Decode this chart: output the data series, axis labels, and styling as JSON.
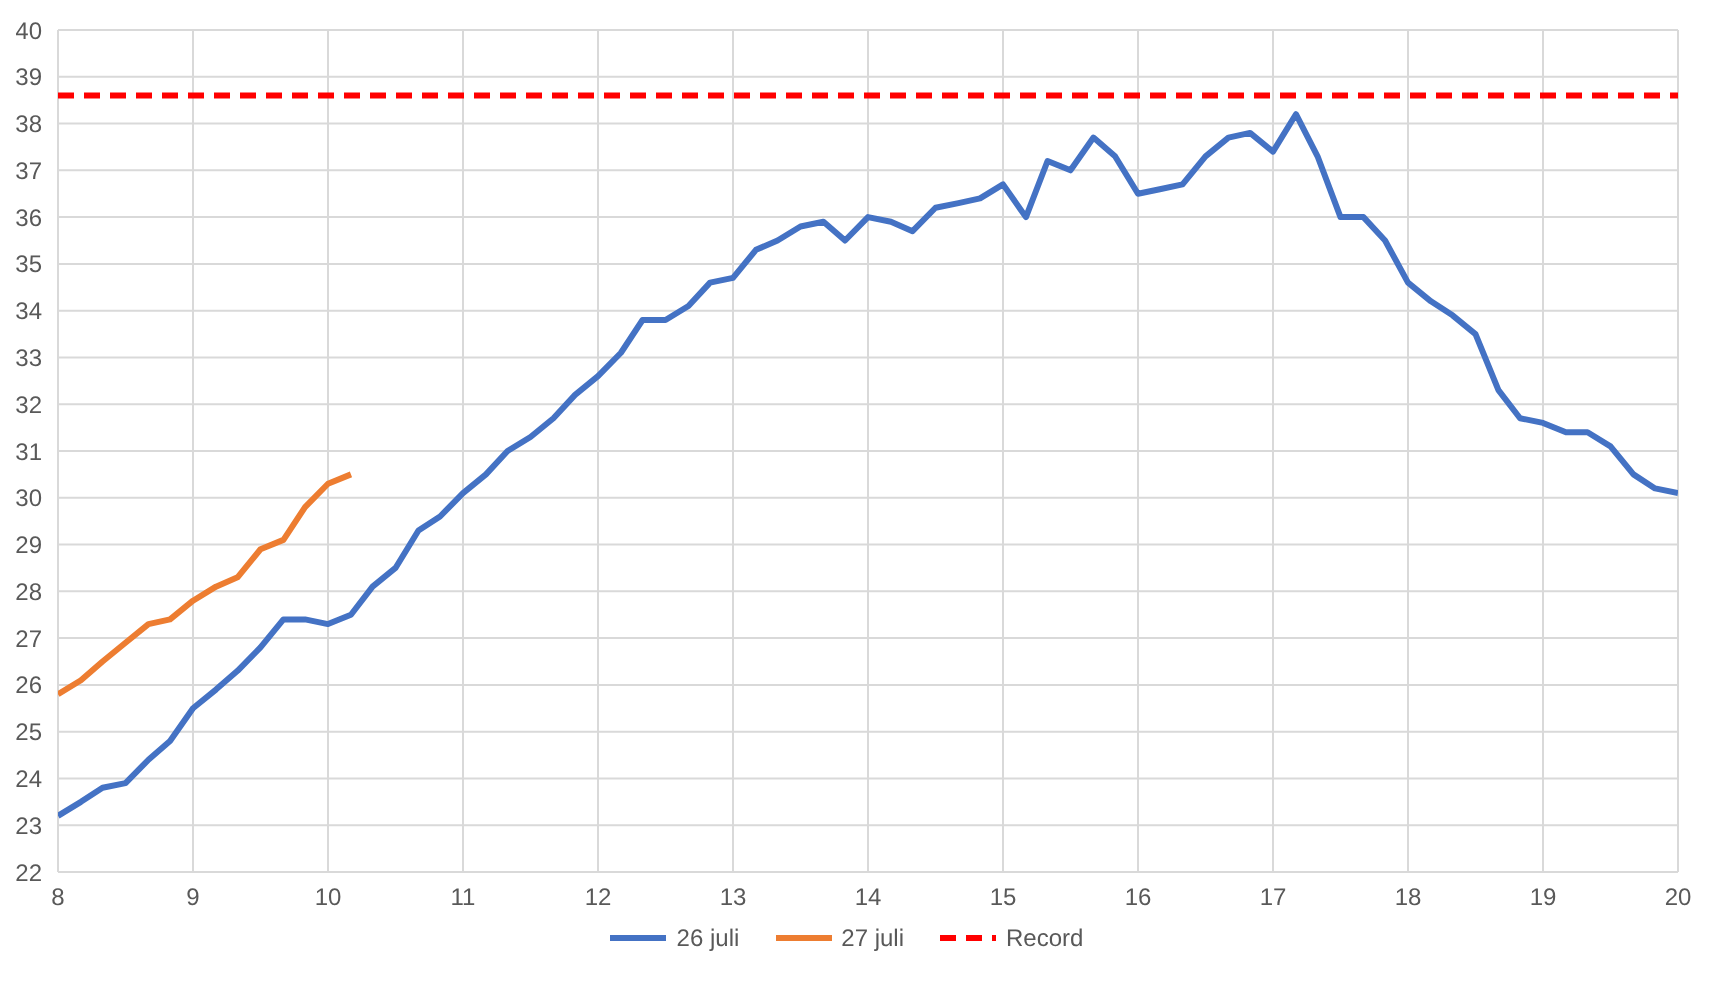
{
  "chart_data": {
    "type": "line",
    "x": [
      8,
      8.17,
      8.33,
      8.5,
      8.67,
      8.83,
      9,
      9.17,
      9.33,
      9.5,
      9.67,
      9.83,
      10,
      10.17,
      10.33,
      10.5,
      10.67,
      10.83,
      11,
      11.17,
      11.33,
      11.5,
      11.67,
      11.83,
      12,
      12.17,
      12.33,
      12.5,
      12.67,
      12.83,
      13,
      13.17,
      13.33,
      13.5,
      13.67,
      13.83,
      14,
      14.17,
      14.33,
      14.5,
      14.67,
      14.83,
      15,
      15.17,
      15.33,
      15.5,
      15.67,
      15.83,
      16,
      16.17,
      16.33,
      16.5,
      16.67,
      16.83,
      17,
      17.17,
      17.33,
      17.5,
      17.67,
      17.83,
      18,
      18.17,
      18.33,
      18.5,
      18.67,
      18.83,
      19,
      19.17,
      19.33,
      19.5,
      19.67,
      19.83,
      20
    ],
    "series": [
      {
        "name": "26 juli",
        "color": "#4472c4",
        "values": [
          23.2,
          23.5,
          23.8,
          23.9,
          24.4,
          24.8,
          25.5,
          25.9,
          26.3,
          26.8,
          27.4,
          27.4,
          27.3,
          27.5,
          28.1,
          28.5,
          29.3,
          29.6,
          30.1,
          30.5,
          31.0,
          31.3,
          31.7,
          32.2,
          32.6,
          33.1,
          33.8,
          33.8,
          34.1,
          34.6,
          34.7,
          35.3,
          35.5,
          35.8,
          35.9,
          35.5,
          36.0,
          35.9,
          35.7,
          36.2,
          36.3,
          36.4,
          36.7,
          36.0,
          37.2,
          37.0,
          37.7,
          37.3,
          36.5,
          36.6,
          36.7,
          37.3,
          37.7,
          37.8,
          37.4,
          38.2,
          37.3,
          36.0,
          36.0,
          35.5,
          34.6,
          34.2,
          33.9,
          33.5,
          32.3,
          31.7,
          31.6,
          31.4,
          31.4,
          31.1,
          30.5,
          30.2,
          30.1
        ]
      },
      {
        "name": "27 juli",
        "color": "#ed7d31",
        "values": [
          25.8,
          26.1,
          26.5,
          26.9,
          27.3,
          27.4,
          27.8,
          28.1,
          28.3,
          28.9,
          29.1,
          29.8,
          30.3,
          30.5,
          null,
          null,
          null,
          null,
          null,
          null,
          null,
          null,
          null,
          null,
          null,
          null,
          null,
          null,
          null,
          null,
          null,
          null,
          null,
          null,
          null,
          null,
          null,
          null,
          null,
          null,
          null,
          null,
          null,
          null,
          null,
          null,
          null,
          null,
          null,
          null,
          null,
          null,
          null,
          null,
          null,
          null,
          null,
          null,
          null,
          null,
          null,
          null,
          null,
          null,
          null,
          null,
          null,
          null,
          null,
          null,
          null,
          null,
          null
        ]
      }
    ],
    "ref_lines": [
      {
        "axis": "y",
        "value": 38.6,
        "label": "Record",
        "color": "#ff0000",
        "line_style": "dashed"
      }
    ],
    "xlim": [
      8,
      20
    ],
    "xticks": [
      8,
      9,
      10,
      11,
      12,
      13,
      14,
      15,
      16,
      17,
      18,
      19,
      20
    ],
    "ylim": [
      22,
      40
    ],
    "yticks": [
      22,
      23,
      24,
      25,
      26,
      27,
      28,
      29,
      30,
      31,
      32,
      33,
      34,
      35,
      36,
      37,
      38,
      39,
      40
    ],
    "grid": true,
    "legend": "bottom",
    "marker": "none",
    "line_style": "solid"
  }
}
